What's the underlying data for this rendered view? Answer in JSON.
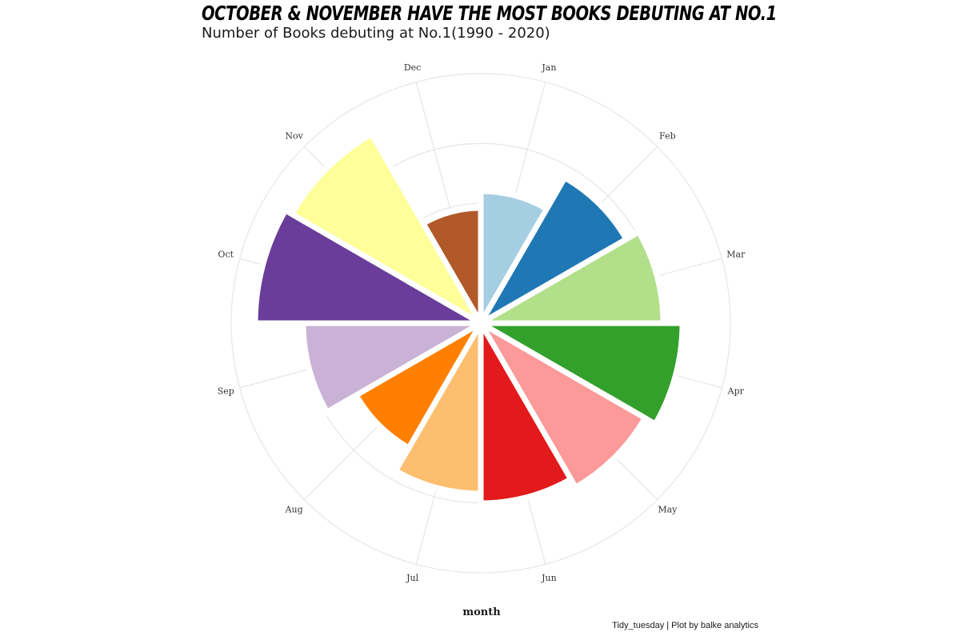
{
  "chart_data": {
    "type": "bar",
    "coordinate_system": "polar",
    "title": "October & November have the most books debuting at No.1",
    "subtitle": "Number of Books debuting at No.1(1990 - 2020)",
    "xlabel": "month",
    "ylabel": "",
    "caption": "Tidy_tuesday | Plot by balke analytics",
    "grid": true,
    "legend": "none",
    "ylim": [
      0,
      104
    ],
    "categories": [
      "Jan",
      "Feb",
      "Mar",
      "Apr",
      "May",
      "Jun",
      "Jul",
      "Aug",
      "Sep",
      "Oct",
      "Nov",
      "Dec"
    ],
    "values": [
      55,
      70,
      76,
      84,
      79,
      75,
      71,
      60,
      74,
      94,
      91,
      48
    ],
    "colors": [
      "#a6cee3",
      "#1f78b4",
      "#b2df8a",
      "#33a02c",
      "#fb9a99",
      "#e31a1c",
      "#fdbf6f",
      "#ff7f00",
      "#cab2d6",
      "#6a3d9a",
      "#ffff99",
      "#b15928"
    ]
  }
}
